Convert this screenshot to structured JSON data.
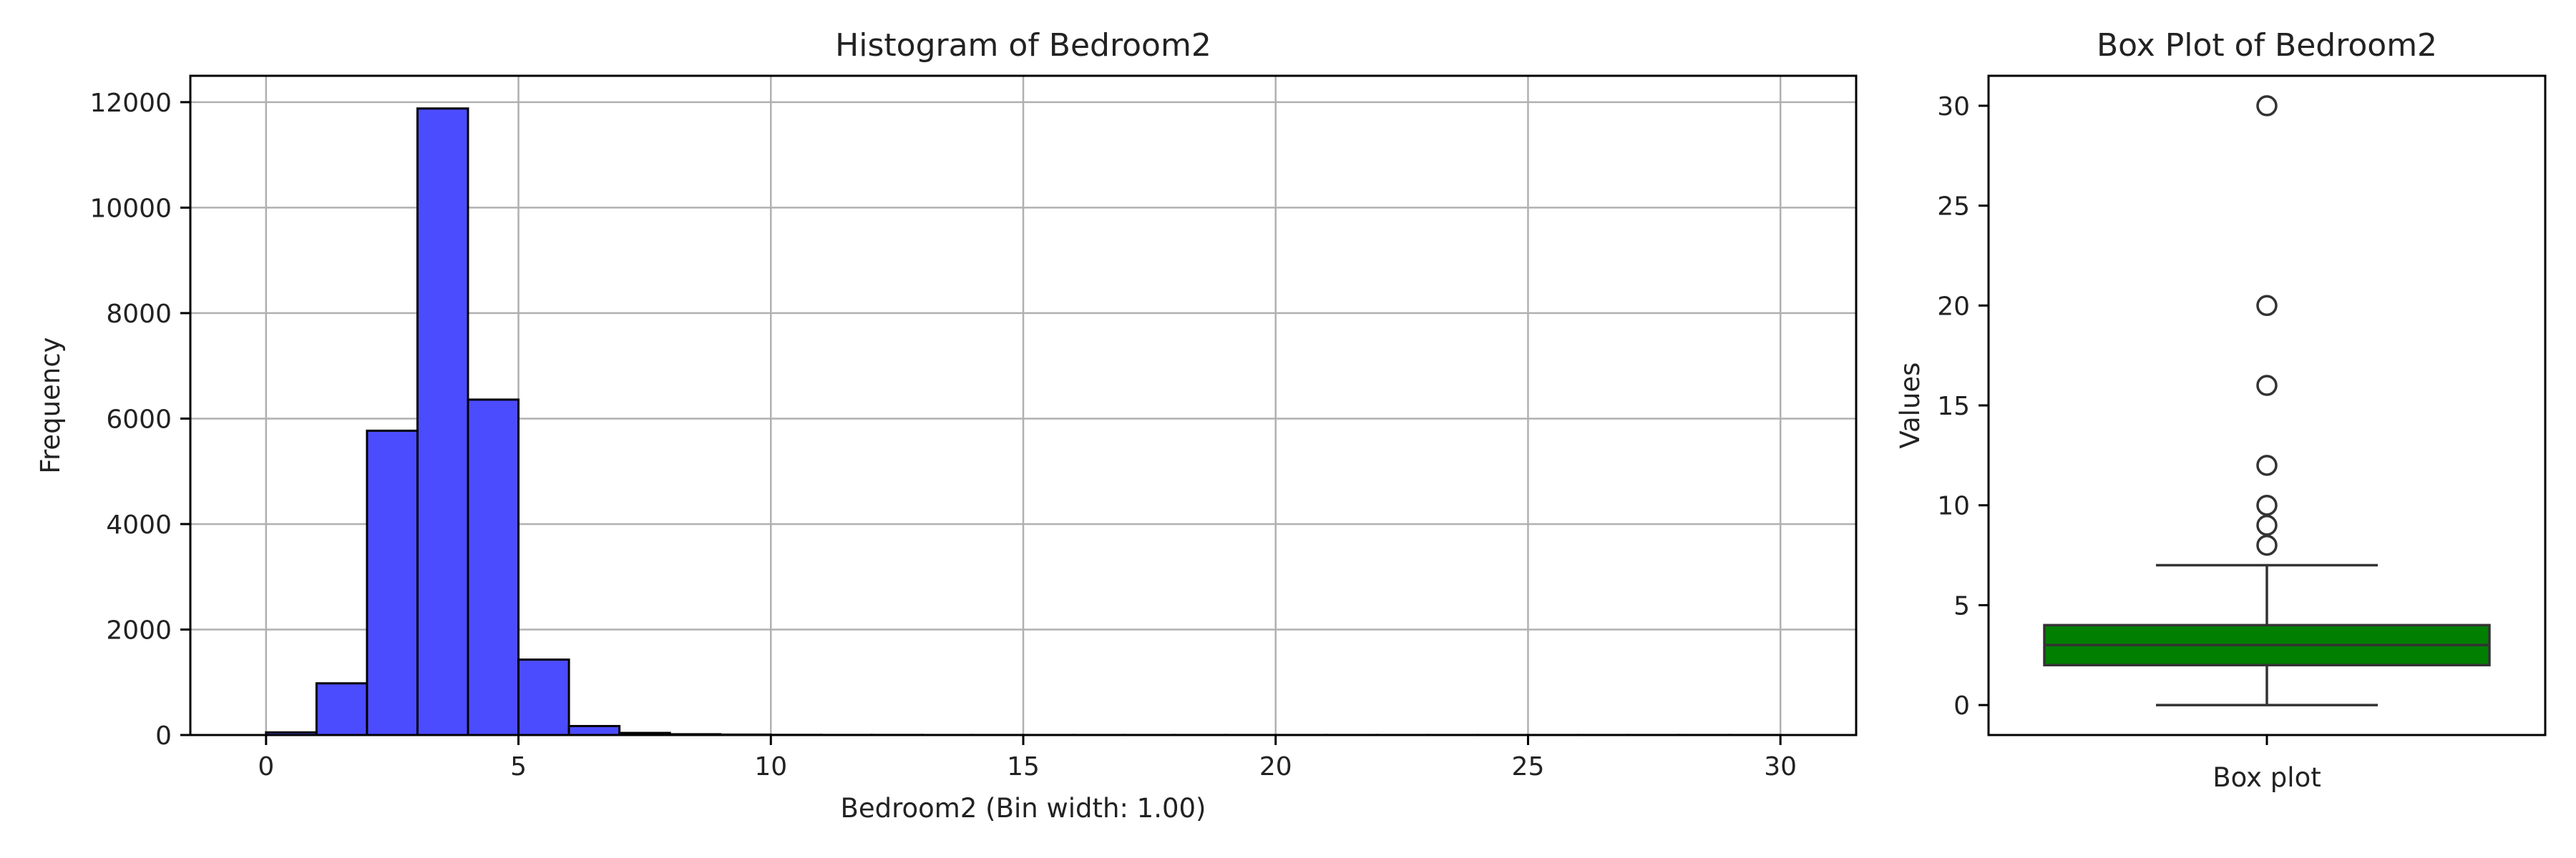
{
  "chart_data": [
    {
      "type": "bar",
      "title": "Histogram of Bedroom2",
      "xlabel": "Bedroom2 (Bin width: 1.00)",
      "ylabel": "Frequency",
      "xlim": [
        -1.5,
        31.5
      ],
      "ylim": [
        0,
        12500
      ],
      "xticks": [
        "0",
        "5",
        "10",
        "15",
        "20",
        "25",
        "30"
      ],
      "yticks": [
        "0",
        "2000",
        "4000",
        "6000",
        "8000",
        "10000",
        "12000"
      ],
      "grid": true,
      "bin_width": 1,
      "bins": [
        {
          "x0": 0,
          "x1": 1,
          "count": 50
        },
        {
          "x0": 1,
          "x1": 2,
          "count": 980
        },
        {
          "x0": 2,
          "x1": 3,
          "count": 5770
        },
        {
          "x0": 3,
          "x1": 4,
          "count": 11880
        },
        {
          "x0": 4,
          "x1": 5,
          "count": 6360
        },
        {
          "x0": 5,
          "x1": 6,
          "count": 1430
        },
        {
          "x0": 6,
          "x1": 7,
          "count": 170
        },
        {
          "x0": 7,
          "x1": 8,
          "count": 40
        },
        {
          "x0": 8,
          "x1": 9,
          "count": 15
        },
        {
          "x0": 9,
          "x1": 10,
          "count": 8
        },
        {
          "x0": 10,
          "x1": 11,
          "count": 3
        },
        {
          "x0": 11,
          "x1": 12,
          "count": 2
        },
        {
          "x0": 12,
          "x1": 13,
          "count": 2
        },
        {
          "x0": 13,
          "x1": 14,
          "count": 1
        },
        {
          "x0": 14,
          "x1": 15,
          "count": 1
        },
        {
          "x0": 15,
          "x1": 16,
          "count": 1
        },
        {
          "x0": 16,
          "x1": 17,
          "count": 1
        },
        {
          "x0": 17,
          "x1": 18,
          "count": 1
        },
        {
          "x0": 18,
          "x1": 19,
          "count": 1
        },
        {
          "x0": 19,
          "x1": 20,
          "count": 1
        },
        {
          "x0": 20,
          "x1": 21,
          "count": 1
        },
        {
          "x0": 21,
          "x1": 22,
          "count": 1
        },
        {
          "x0": 22,
          "x1": 23,
          "count": 1
        },
        {
          "x0": 23,
          "x1": 24,
          "count": 1
        },
        {
          "x0": 24,
          "x1": 25,
          "count": 1
        },
        {
          "x0": 25,
          "x1": 26,
          "count": 1
        },
        {
          "x0": 26,
          "x1": 27,
          "count": 1
        },
        {
          "x0": 27,
          "x1": 28,
          "count": 1
        },
        {
          "x0": 28,
          "x1": 29,
          "count": 1
        },
        {
          "x0": 29,
          "x1": 30,
          "count": 1
        }
      ],
      "bar_color": "#4c4cff",
      "edge_color": "#000000"
    },
    {
      "type": "box",
      "title": "Box Plot of Bedroom2",
      "xlabel": "Box plot",
      "ylabel": "Values",
      "ylim": [
        -1.5,
        31.5
      ],
      "yticks": [
        "0",
        "5",
        "10",
        "15",
        "20",
        "25",
        "30"
      ],
      "grid": false,
      "whisker_low": 0,
      "q1": 2,
      "median": 3,
      "q3": 4,
      "whisker_high": 7,
      "outliers": [
        8,
        9,
        10,
        12,
        16,
        20,
        30
      ],
      "box_color": "#007f00",
      "edge_color": "#333333"
    }
  ]
}
